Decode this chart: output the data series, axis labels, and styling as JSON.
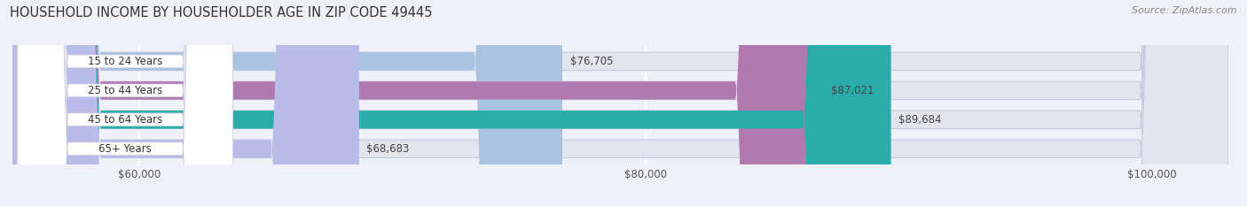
{
  "title": "HOUSEHOLD INCOME BY HOUSEHOLDER AGE IN ZIP CODE 49445",
  "source": "Source: ZipAtlas.com",
  "categories": [
    "15 to 24 Years",
    "25 to 44 Years",
    "45 to 64 Years",
    "65+ Years"
  ],
  "values": [
    76705,
    87021,
    89684,
    68683
  ],
  "bar_colors": [
    "#a8c4e0",
    "#b07ab0",
    "#2aacaa",
    "#b8bce8"
  ],
  "bar_labels": [
    "$76,705",
    "$87,021",
    "$89,684",
    "$68,683"
  ],
  "xlim_min": 55000,
  "xlim_max": 103000,
  "xticks": [
    60000,
    80000,
    100000
  ],
  "xtick_labels": [
    "$60,000",
    "$80,000",
    "$100,000"
  ],
  "background_color": "#f0f0f8",
  "bar_bg_color": "#e4e4ef",
  "bar_outline_color": "#c8c8dc",
  "title_fontsize": 10.5,
  "source_fontsize": 8,
  "label_fontsize": 8.5,
  "xtick_fontsize": 8.5,
  "value_label_color_dark": "#444444",
  "value_label_color_white": "#ffffff"
}
